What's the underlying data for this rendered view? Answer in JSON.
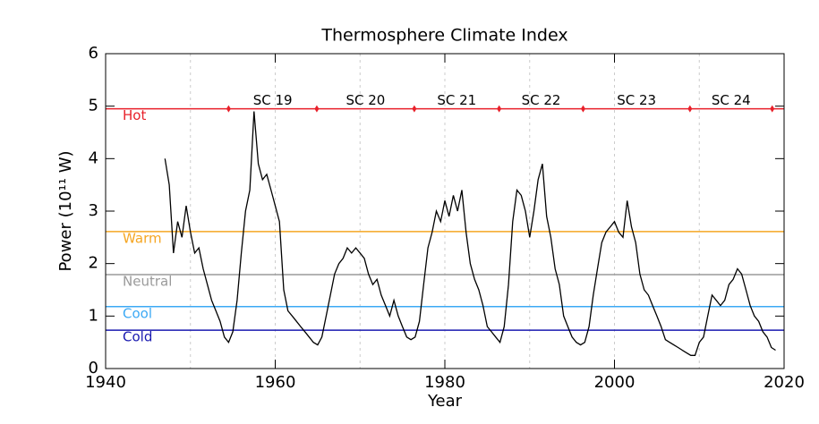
{
  "chart_data": {
    "type": "line",
    "title": "Thermosphere Climate Index",
    "x_label": "Year",
    "y_label": "Power (10¹¹ W)",
    "xlim": [
      1940,
      2020
    ],
    "xticks": [
      1940,
      1960,
      1980,
      2000,
      2020
    ],
    "ylim": [
      0,
      6
    ],
    "yticks": [
      0,
      1,
      2,
      3,
      4,
      5,
      6
    ],
    "xgrid": [
      1950,
      1960,
      1970,
      1980,
      1990,
      2000,
      2010
    ],
    "thresholds": [
      {
        "label": "Hot",
        "value": 4.95,
        "color": "#e8202a"
      },
      {
        "label": "Warm",
        "value": 2.61,
        "color": "#f5a623"
      },
      {
        "label": "Neutral",
        "value": 1.79,
        "color": "#9a9a9a"
      },
      {
        "label": "Cool",
        "value": 1.18,
        "color": "#3ca9f5"
      },
      {
        "label": "Cold",
        "value": 0.73,
        "color": "#1a1ab0"
      }
    ],
    "cycle_boundaries": [
      1954.5,
      1964.9,
      1976.4,
      1986.4,
      1996.3,
      2008.9,
      2018.6
    ],
    "cycle_labels": [
      "SC 19",
      "SC 20",
      "SC 21",
      "SC 22",
      "SC 23",
      "SC 24"
    ],
    "series": [
      {
        "color": "#000000",
        "x": [
          1947,
          1947.5,
          1948,
          1948.5,
          1949,
          1949.5,
          1950,
          1950.5,
          1951,
          1951.5,
          1952,
          1952.5,
          1953,
          1953.5,
          1954,
          1954.5,
          1955,
          1955.5,
          1956,
          1956.5,
          1957,
          1957.5,
          1958,
          1958.5,
          1959,
          1959.5,
          1960,
          1960.5,
          1961,
          1961.5,
          1962,
          1962.5,
          1963,
          1963.5,
          1964,
          1964.5,
          1965,
          1965.5,
          1966,
          1966.5,
          1967,
          1967.5,
          1968,
          1968.5,
          1969,
          1969.5,
          1970,
          1970.5,
          1971,
          1971.5,
          1972,
          1972.5,
          1973,
          1973.5,
          1974,
          1974.5,
          1975,
          1975.5,
          1976,
          1976.5,
          1977,
          1977.5,
          1978,
          1978.5,
          1979,
          1979.5,
          1980,
          1980.5,
          1981,
          1981.5,
          1982,
          1982.5,
          1983,
          1983.5,
          1984,
          1984.5,
          1985,
          1985.5,
          1986,
          1986.5,
          1987,
          1987.5,
          1988,
          1988.5,
          1989,
          1989.5,
          1990,
          1990.5,
          1991,
          1991.5,
          1992,
          1992.5,
          1993,
          1993.5,
          1994,
          1994.5,
          1995,
          1995.5,
          1996,
          1996.5,
          1997,
          1997.5,
          1998,
          1998.5,
          1999,
          1999.5,
          2000,
          2000.5,
          2001,
          2001.5,
          2002,
          2002.5,
          2003,
          2003.5,
          2004,
          2004.5,
          2005,
          2005.5,
          2006,
          2006.5,
          2007,
          2007.5,
          2008,
          2008.5,
          2009,
          2009.5,
          2010,
          2010.5,
          2011,
          2011.5,
          2012,
          2012.5,
          2013,
          2013.5,
          2014,
          2014.5,
          2015,
          2015.5,
          2016,
          2016.5,
          2017,
          2017.5,
          2018,
          2018.5,
          2019
        ],
        "values": [
          4.0,
          3.5,
          2.2,
          2.8,
          2.5,
          3.1,
          2.6,
          2.2,
          2.3,
          1.9,
          1.6,
          1.3,
          1.1,
          0.9,
          0.6,
          0.5,
          0.7,
          1.3,
          2.2,
          3.0,
          3.4,
          4.9,
          3.9,
          3.6,
          3.7,
          3.4,
          3.1,
          2.8,
          1.5,
          1.1,
          1.0,
          0.9,
          0.8,
          0.7,
          0.6,
          0.5,
          0.45,
          0.6,
          1.0,
          1.4,
          1.8,
          2.0,
          2.1,
          2.3,
          2.2,
          2.3,
          2.2,
          2.1,
          1.8,
          1.6,
          1.7,
          1.4,
          1.2,
          1.0,
          1.3,
          1.0,
          0.8,
          0.6,
          0.55,
          0.6,
          0.9,
          1.6,
          2.3,
          2.6,
          3.0,
          2.8,
          3.2,
          2.9,
          3.3,
          3.0,
          3.4,
          2.6,
          2.0,
          1.7,
          1.5,
          1.2,
          0.8,
          0.7,
          0.6,
          0.5,
          0.8,
          1.6,
          2.8,
          3.4,
          3.3,
          3.0,
          2.5,
          3.0,
          3.6,
          3.9,
          2.9,
          2.5,
          1.9,
          1.6,
          1.0,
          0.8,
          0.6,
          0.5,
          0.45,
          0.5,
          0.8,
          1.4,
          1.9,
          2.4,
          2.6,
          2.7,
          2.8,
          2.6,
          2.5,
          3.2,
          2.7,
          2.4,
          1.8,
          1.5,
          1.4,
          1.2,
          1.0,
          0.8,
          0.55,
          0.5,
          0.45,
          0.4,
          0.35,
          0.3,
          0.25,
          0.25,
          0.5,
          0.6,
          1.0,
          1.4,
          1.3,
          1.2,
          1.3,
          1.6,
          1.7,
          1.9,
          1.8,
          1.5,
          1.2,
          1.0,
          0.9,
          0.7,
          0.6,
          0.4,
          0.35
        ]
      }
    ]
  }
}
